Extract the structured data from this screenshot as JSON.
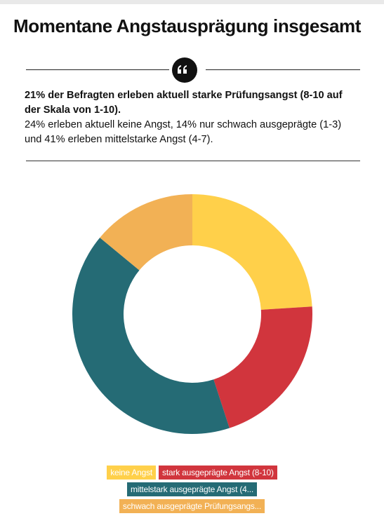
{
  "title": "Momentane Angstausprägung insgesamt",
  "intro": {
    "bold": "21% der Befragten erleben aktuell starke Prüfungsangst (8-10 auf der Skala von 1-10).",
    "normal": "24% erleben aktuell keine Angst, 14% nur schwach ausgeprägte (1-3) und 41% erleben mittelstarke Angst (4-7)."
  },
  "chart_data": {
    "type": "pie",
    "donut": true,
    "slices": [
      {
        "label": "keine Angst",
        "value": 24,
        "color": "#ffd04a"
      },
      {
        "label": "stark ausgeprägte Angst (8-10)",
        "value": 21,
        "color": "#d1353d"
      },
      {
        "label": "mittelstark ausgeprägte Angst (4...",
        "value": 41,
        "color": "#256b75"
      },
      {
        "label": "schwach ausgeprägte Prüfungsangs...",
        "value": 14,
        "color": "#f2b155"
      }
    ],
    "legend_position": "bottom"
  },
  "legend_rows": [
    [
      0,
      1
    ],
    [
      2
    ],
    [
      3
    ]
  ]
}
